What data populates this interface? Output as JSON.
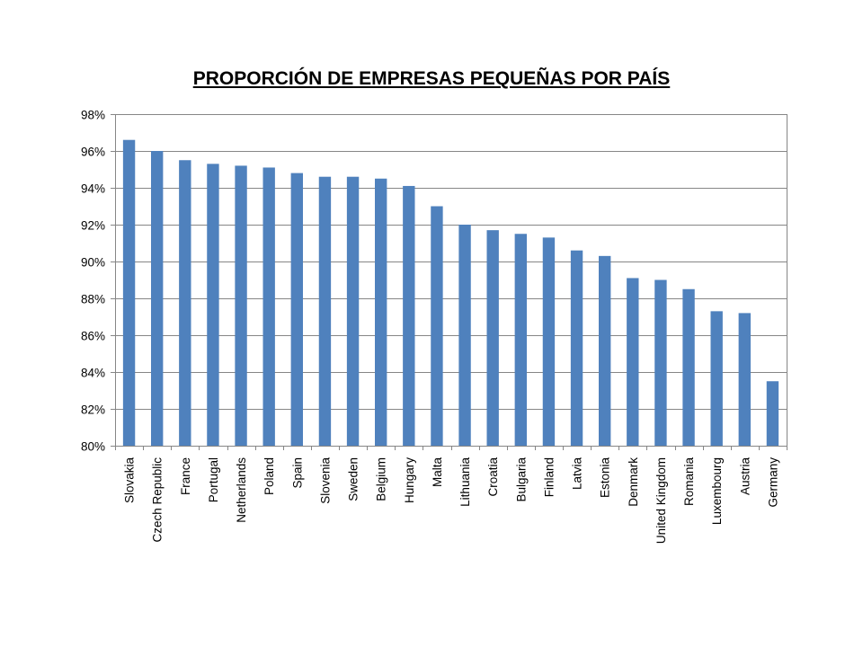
{
  "chart_data": {
    "type": "bar",
    "title": "PROPORCIÓN DE EMPRESAS PEQUEÑAS POR PAÍS",
    "xlabel": "",
    "ylabel": "",
    "ylim": [
      80,
      98
    ],
    "y_ticks": [
      80,
      82,
      84,
      86,
      88,
      90,
      92,
      94,
      96,
      98
    ],
    "y_tick_labels": [
      "80%",
      "82%",
      "84%",
      "86%",
      "88%",
      "90%",
      "92%",
      "94%",
      "96%",
      "98%"
    ],
    "grid": "horizontal",
    "legend": "none",
    "bar_color": "#4F81BD",
    "categories": [
      "Slovakia",
      "Czech Republic",
      "France",
      "Portugal",
      "Netherlands",
      "Poland",
      "Spain",
      "Slovenia",
      "Sweden",
      "Belgium",
      "Hungary",
      "Malta",
      "Lithuania",
      "Croatia",
      "Bulgaria",
      "Finland",
      "Latvia",
      "Estonia",
      "Denmark",
      "United Kingdom",
      "Romania",
      "Luxembourg",
      "Austria",
      "Germany"
    ],
    "values": [
      96.6,
      96.0,
      95.5,
      95.3,
      95.2,
      95.1,
      94.8,
      94.6,
      94.6,
      94.5,
      94.1,
      93.0,
      92.0,
      91.7,
      91.5,
      91.3,
      90.6,
      90.3,
      89.1,
      89.0,
      88.5,
      87.3,
      87.2,
      83.5
    ]
  }
}
